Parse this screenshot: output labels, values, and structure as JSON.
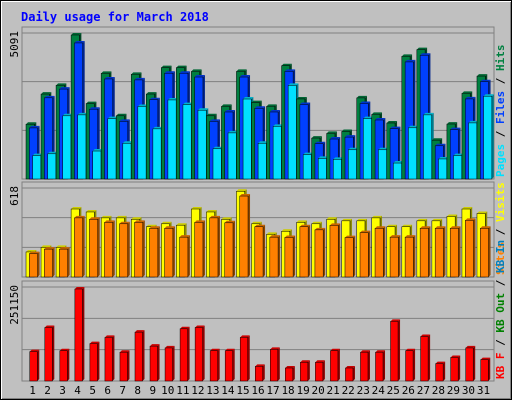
{
  "chart_data": {
    "type": "bar",
    "title": "Daily usage for March 2018",
    "colors": {
      "background": "#c0c0c0",
      "panel": "#c0c0c0",
      "gridline": "#808080",
      "title": "#0000ff",
      "weekend_day": "#008040",
      "weekday": "#000000",
      "hits": "#008040",
      "files": "#0040ff",
      "pages": "#00e0ff",
      "visits": "#ffff00",
      "sites": "#ff8000",
      "kb_in": "#0080c0",
      "kb_out": "#008000",
      "kb_f": "#ff0000",
      "separator": "#000000"
    },
    "days": [
      {
        "label": "1",
        "weekend": false
      },
      {
        "label": "2",
        "weekend": false
      },
      {
        "label": "3",
        "weekend": true
      },
      {
        "label": "4",
        "weekend": true
      },
      {
        "label": "5",
        "weekend": false
      },
      {
        "label": "6",
        "weekend": false
      },
      {
        "label": "7",
        "weekend": false
      },
      {
        "label": "8",
        "weekend": false
      },
      {
        "label": "9",
        "weekend": false
      },
      {
        "label": "10",
        "weekend": true
      },
      {
        "label": "11",
        "weekend": true
      },
      {
        "label": "12",
        "weekend": false
      },
      {
        "label": "13",
        "weekend": false
      },
      {
        "label": "14",
        "weekend": false
      },
      {
        "label": "15",
        "weekend": false
      },
      {
        "label": "16",
        "weekend": false
      },
      {
        "label": "17",
        "weekend": true
      },
      {
        "label": "18",
        "weekend": true
      },
      {
        "label": "19",
        "weekend": false
      },
      {
        "label": "20",
        "weekend": false
      },
      {
        "label": "21",
        "weekend": false
      },
      {
        "label": "22",
        "weekend": false
      },
      {
        "label": "23",
        "weekend": false
      },
      {
        "label": "24",
        "weekend": true
      },
      {
        "label": "25",
        "weekend": true
      },
      {
        "label": "26",
        "weekend": false
      },
      {
        "label": "27",
        "weekend": false
      },
      {
        "label": "28",
        "weekend": false
      },
      {
        "label": "29",
        "weekend": false
      },
      {
        "label": "30",
        "weekend": false
      },
      {
        "label": "31",
        "weekend": true
      }
    ],
    "panels": [
      {
        "id": "hits-files-pages",
        "ymax": 5091,
        "ymax_label": "5091",
        "side_label": [
          {
            "text": "Pages",
            "color": "#00e0ff"
          },
          {
            "text": " / ",
            "color": "#000000"
          },
          {
            "text": "Files",
            "color": "#0040ff"
          },
          {
            "text": " / ",
            "color": "#000000"
          },
          {
            "text": "Hits",
            "color": "#008040"
          }
        ],
        "series": [
          {
            "name": "Hits",
            "color": "#008040",
            "values": [
              1937,
              3001,
              3311,
              5091,
              2666,
              3735,
              2234,
              3701,
              3002,
              3937,
              3937,
              3803,
              2234,
              2567,
              3803,
              2698,
              2567,
              4005,
              2830,
              1446,
              1611,
              1679,
              2867,
              2284,
              1979,
              4337,
              4574,
              1372,
              1942,
              3029,
              3637
            ]
          },
          {
            "name": "Files",
            "color": "#0040ff",
            "values": [
              1806,
              2870,
              3179,
              4810,
              2468,
              3537,
              2036,
              3503,
              2804,
              3739,
              3739,
              3605,
              2036,
              2369,
              3605,
              2500,
              2369,
              3807,
              2632,
              1248,
              1413,
              1481,
              2669,
              2086,
              1781,
              4139,
              4376,
              1174,
              1744,
              2831,
              3439
            ]
          },
          {
            "name": "Pages",
            "color": "#00e0ff",
            "values": [
              825,
              891,
              2234,
              2267,
              989,
              2135,
              1264,
              2564,
              1773,
              2795,
              2630,
              2432,
              1069,
              1630,
              2828,
              1264,
              1861,
              3309,
              860,
              727,
              695,
              1033,
              2135,
              1033,
              564,
              1810,
              2267,
              709,
              825,
              1983,
              2927
            ]
          }
        ]
      },
      {
        "id": "visits-sites",
        "ymax": 618,
        "ymax_label": "618",
        "side_label": [
          {
            "text": "Sites",
            "color": "#ff8000"
          },
          {
            "text": " / ",
            "color": "#000000"
          },
          {
            "text": "Visits",
            "color": "#ffff00"
          }
        ],
        "series": [
          {
            "name": "Visits",
            "color": "#ffff00",
            "values": [
              178,
              210,
              210,
              483,
              462,
              420,
              420,
              410,
              357,
              378,
              368,
              483,
              462,
              409,
              609,
              378,
              303,
              325,
              388,
              378,
              410,
              399,
              399,
              420,
              357,
              357,
              399,
              399,
              430,
              483,
              451
            ]
          },
          {
            "name": "Sites",
            "color": "#ff8000",
            "values": [
              166,
              198,
              198,
              420,
              410,
              388,
              378,
              388,
              346,
              346,
              283,
              388,
              420,
              385,
              575,
              357,
              283,
              281,
              357,
              335,
              367,
              280,
              315,
              346,
              283,
              283,
              346,
              346,
              346,
              402,
              346
            ]
          }
        ]
      },
      {
        "id": "kbytes",
        "ymax": 251150,
        "ymax_label": "251150",
        "side_label": [
          {
            "text": "KB F",
            "color": "#ff0000"
          },
          {
            "text": " / ",
            "color": "#000000"
          },
          {
            "text": "KB Out",
            "color": "#008000"
          },
          {
            "text": " / ",
            "color": "#000000"
          },
          {
            "text": "KB In",
            "color": "#0080c0"
          }
        ],
        "series": [
          {
            "name": "KB F",
            "color": "#ff0000",
            "values": [
              80225,
              146094,
              82622,
              251150,
              102179,
              118946,
              78630,
              133312,
              95090,
              90296,
              142503,
              146094,
              82622,
              82622,
              118946,
              39923,
              86214,
              35526,
              51096,
              51096,
              82622,
              35526,
              78630,
              78630,
              162858,
              82622,
              121334,
              47504,
              64281,
              90296,
              58488
            ]
          }
        ]
      }
    ]
  }
}
